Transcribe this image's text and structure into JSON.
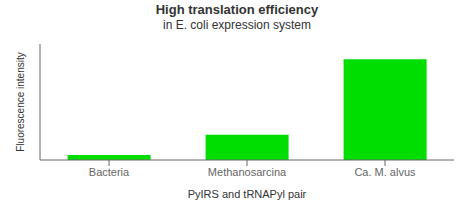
{
  "chart_data": {
    "type": "bar",
    "title": "High translation efficiency",
    "subtitle": "in E. coli expression system",
    "categories": [
      "Bacteria",
      "Methanosarcina",
      "Ca. M. alvus"
    ],
    "values": [
      0.05,
      0.25,
      1.0
    ],
    "color": "#00dd00",
    "ylabel": "Fluorescence intensity",
    "xlabel": "PyIRS and tRNAPyl pair",
    "ylim": [
      0,
      1.15
    ],
    "grid": false,
    "tick_labels": "x"
  }
}
